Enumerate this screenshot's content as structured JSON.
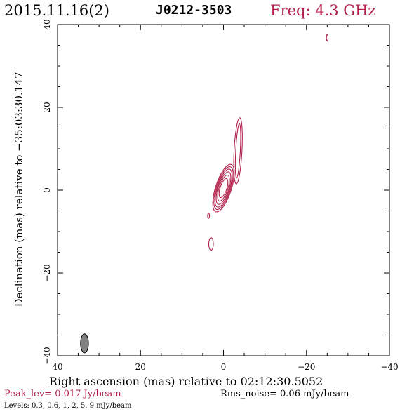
{
  "header": {
    "date": "2015.11.16(2)",
    "source": "J0212-3503",
    "frequency": "Freq: 4.3 GHz"
  },
  "footer": {
    "peak": "Peak_lev=  0.017 Jy/beam",
    "rms": "Rms_noise= 0.06 mJy/beam",
    "levels": "Levels: 0.3, 0.6,    1,    2,    5,    9 mJy/beam"
  },
  "colors": {
    "title": "#b0204a",
    "contour": "#b0204a",
    "beam": "#808080",
    "axes": "#000000"
  },
  "chart_data": {
    "type": "contour",
    "title": "J0212-3503",
    "xlabel": "Right ascension (mas) relative to 02:12:30.5052",
    "ylabel": "Declination (mas) relative to −35:03:30.147",
    "xlim": [
      40,
      -40
    ],
    "ylim": [
      -40,
      40
    ],
    "x_ticks": [
      40,
      20,
      0,
      -20,
      -40
    ],
    "y_ticks": [
      40,
      20,
      0,
      -20,
      -40
    ],
    "x_tick_labels": [
      "40",
      "20",
      "0",
      "−20",
      "−40"
    ],
    "y_tick_labels": [
      "40",
      "20",
      "0",
      "−20",
      "−40"
    ],
    "grid": false,
    "contour_levels_mJy": [
      0.3,
      0.6,
      1,
      2,
      5,
      9
    ],
    "peak_Jy_per_beam": 0.017,
    "rms_mJy_per_beam": 0.06,
    "components": [
      {
        "name": "core",
        "x": 0.0,
        "y": 0.5,
        "semi_major": [
          6.0,
          5.4,
          4.8,
          4.1,
          3.3,
          2.4
        ],
        "semi_minor": [
          1.9,
          1.7,
          1.5,
          1.3,
          1.05,
          0.8
        ],
        "pa_deg": 18
      },
      {
        "name": "jet",
        "x": -3.5,
        "y": 9.5,
        "semi_major": [
          8.0,
          6.6
        ],
        "semi_minor": [
          0.95,
          0.55
        ],
        "pa_deg": 3
      },
      {
        "name": "blob-1",
        "x": 3.0,
        "y": -13.0,
        "semi_major": [
          1.5
        ],
        "semi_minor": [
          0.55
        ],
        "pa_deg": 0
      },
      {
        "name": "blob-2",
        "x": 3.6,
        "y": -6.2,
        "semi_major": [
          0.6
        ],
        "semi_minor": [
          0.22
        ],
        "pa_deg": 0
      },
      {
        "name": "blob-3",
        "x": -25.0,
        "y": 36.8,
        "semi_major": [
          0.8
        ],
        "semi_minor": [
          0.2
        ],
        "pa_deg": 0
      }
    ],
    "beam": {
      "x": 33.5,
      "y": -37.0,
      "semi_major": 2.3,
      "semi_minor": 0.95,
      "pa_deg": 0
    }
  }
}
